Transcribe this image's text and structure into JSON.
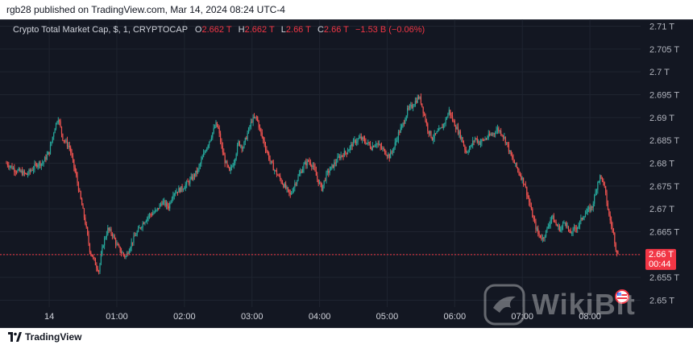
{
  "header": {
    "publisher_line": "rgb28 published on TradingView.com, Mar 14, 2024 08:24 UTC-4"
  },
  "legend": {
    "symbol": "Crypto Total Market Cap, $, 1, CRYPTOCAP",
    "o_label": "O",
    "o_value": "2.662 T",
    "h_label": "H",
    "h_value": "2.662 T",
    "l_label": "L",
    "l_value": "2.66 T",
    "c_label": "C",
    "c_value": "2.66 T",
    "change": "−1.53 B (−0.06%)"
  },
  "footer": {
    "logo_text": "TradingView"
  },
  "watermark": {
    "text": "WikiBit"
  },
  "price_tag": {
    "price": "2.66 T",
    "countdown": "00:44"
  },
  "colors": {
    "background": "#131722",
    "up": "#26a69a",
    "down": "#ef5350",
    "price_tag": "#f23645",
    "grid": "#1f2430",
    "axis_text": "#b2b5be"
  },
  "chart_data": {
    "type": "candlestick",
    "title": "",
    "xlabel": "",
    "ylabel": "",
    "y_unit": "T",
    "ylim": [
      2.6485,
      2.7115
    ],
    "grid": true,
    "yticks": [
      "2.65 T",
      "2.655 T",
      "2.66 T",
      "2.665 T",
      "2.67 T",
      "2.675 T",
      "2.68 T",
      "2.685 T",
      "2.69 T",
      "2.695 T",
      "2.7 T",
      "2.705 T",
      "2.71 T"
    ],
    "ytick_values": [
      2.65,
      2.655,
      2.66,
      2.665,
      2.67,
      2.675,
      2.68,
      2.685,
      2.69,
      2.695,
      2.7,
      2.705,
      2.71
    ],
    "xticks": [
      "14",
      "01:00",
      "02:00",
      "03:00",
      "04:00",
      "05:00",
      "06:00",
      "07:00",
      "08:00"
    ],
    "xtick_minutes": [
      0,
      60,
      120,
      180,
      240,
      300,
      360,
      420,
      480
    ],
    "x_range_minutes": [
      -38,
      505
    ],
    "last_price": 2.66,
    "anchors": [
      [
        -38,
        2.68
      ],
      [
        -30,
        2.6785
      ],
      [
        -20,
        2.6775
      ],
      [
        -10,
        2.68
      ],
      [
        -6,
        2.68
      ],
      [
        0,
        2.6825
      ],
      [
        5,
        2.688
      ],
      [
        8,
        2.69
      ],
      [
        12,
        2.6855
      ],
      [
        18,
        2.6835
      ],
      [
        24,
        2.677
      ],
      [
        28,
        2.672
      ],
      [
        32,
        2.667
      ],
      [
        36,
        2.661
      ],
      [
        40,
        2.6585
      ],
      [
        44,
        2.6565
      ],
      [
        48,
        2.6625
      ],
      [
        52,
        2.6655
      ],
      [
        56,
        2.6645
      ],
      [
        60,
        2.662
      ],
      [
        64,
        2.6605
      ],
      [
        68,
        2.6595
      ],
      [
        72,
        2.662
      ],
      [
        76,
        2.664
      ],
      [
        82,
        2.6665
      ],
      [
        88,
        2.6685
      ],
      [
        95,
        2.6695
      ],
      [
        100,
        2.6715
      ],
      [
        106,
        2.6705
      ],
      [
        110,
        2.6735
      ],
      [
        118,
        2.6745
      ],
      [
        126,
        2.6765
      ],
      [
        132,
        2.6785
      ],
      [
        138,
        2.6825
      ],
      [
        143,
        2.6855
      ],
      [
        148,
        2.6885
      ],
      [
        150,
        2.6875
      ],
      [
        153,
        2.6835
      ],
      [
        156,
        2.6805
      ],
      [
        160,
        2.678
      ],
      [
        164,
        2.6805
      ],
      [
        168,
        2.6845
      ],
      [
        172,
        2.6835
      ],
      [
        176,
        2.6865
      ],
      [
        180,
        2.6895
      ],
      [
        184,
        2.69
      ],
      [
        188,
        2.6865
      ],
      [
        192,
        2.6835
      ],
      [
        196,
        2.6805
      ],
      [
        200,
        2.6785
      ],
      [
        205,
        2.6765
      ],
      [
        210,
        2.6745
      ],
      [
        214,
        2.673
      ],
      [
        218,
        2.6755
      ],
      [
        222,
        2.6775
      ],
      [
        226,
        2.6795
      ],
      [
        230,
        2.6805
      ],
      [
        234,
        2.6795
      ],
      [
        238,
        2.6765
      ],
      [
        242,
        2.6745
      ],
      [
        246,
        2.6775
      ],
      [
        252,
        2.6795
      ],
      [
        258,
        2.6815
      ],
      [
        264,
        2.6825
      ],
      [
        270,
        2.6845
      ],
      [
        276,
        2.6855
      ],
      [
        282,
        2.6845
      ],
      [
        286,
        2.6835
      ],
      [
        290,
        2.6845
      ],
      [
        294,
        2.6835
      ],
      [
        298,
        2.6825
      ],
      [
        302,
        2.6815
      ],
      [
        306,
        2.6835
      ],
      [
        310,
        2.6865
      ],
      [
        314,
        2.6885
      ],
      [
        318,
        2.6915
      ],
      [
        322,
        2.6925
      ],
      [
        325,
        2.6935
      ],
      [
        328,
        2.6945
      ],
      [
        330,
        2.6935
      ],
      [
        333,
        2.6905
      ],
      [
        336,
        2.6875
      ],
      [
        340,
        2.6855
      ],
      [
        344,
        2.6865
      ],
      [
        348,
        2.6875
      ],
      [
        352,
        2.6895
      ],
      [
        355,
        2.6915
      ],
      [
        358,
        2.6895
      ],
      [
        362,
        2.6875
      ],
      [
        366,
        2.6855
      ],
      [
        370,
        2.6825
      ],
      [
        374,
        2.6835
      ],
      [
        378,
        2.6855
      ],
      [
        382,
        2.6845
      ],
      [
        388,
        2.6855
      ],
      [
        394,
        2.6865
      ],
      [
        398,
        2.6875
      ],
      [
        402,
        2.6865
      ],
      [
        406,
        2.6845
      ],
      [
        410,
        2.6815
      ],
      [
        414,
        2.6795
      ],
      [
        418,
        2.6775
      ],
      [
        422,
        2.6755
      ],
      [
        426,
        2.6715
      ],
      [
        430,
        2.6675
      ],
      [
        434,
        2.6645
      ],
      [
        438,
        2.6635
      ],
      [
        442,
        2.6655
      ],
      [
        446,
        2.6685
      ],
      [
        450,
        2.6665
      ],
      [
        454,
        2.6655
      ],
      [
        458,
        2.6675
      ],
      [
        462,
        2.6645
      ],
      [
        466,
        2.6655
      ],
      [
        470,
        2.6665
      ],
      [
        474,
        2.6685
      ],
      [
        478,
        2.6695
      ],
      [
        482,
        2.6705
      ],
      [
        485,
        2.6735
      ],
      [
        487,
        2.676
      ],
      [
        489,
        2.677
      ],
      [
        491,
        2.6765
      ],
      [
        493,
        2.6745
      ],
      [
        495,
        2.6715
      ],
      [
        497,
        2.6685
      ],
      [
        499,
        2.6665
      ],
      [
        501,
        2.6645
      ],
      [
        503,
        2.6615
      ],
      [
        505,
        2.66
      ]
    ]
  }
}
